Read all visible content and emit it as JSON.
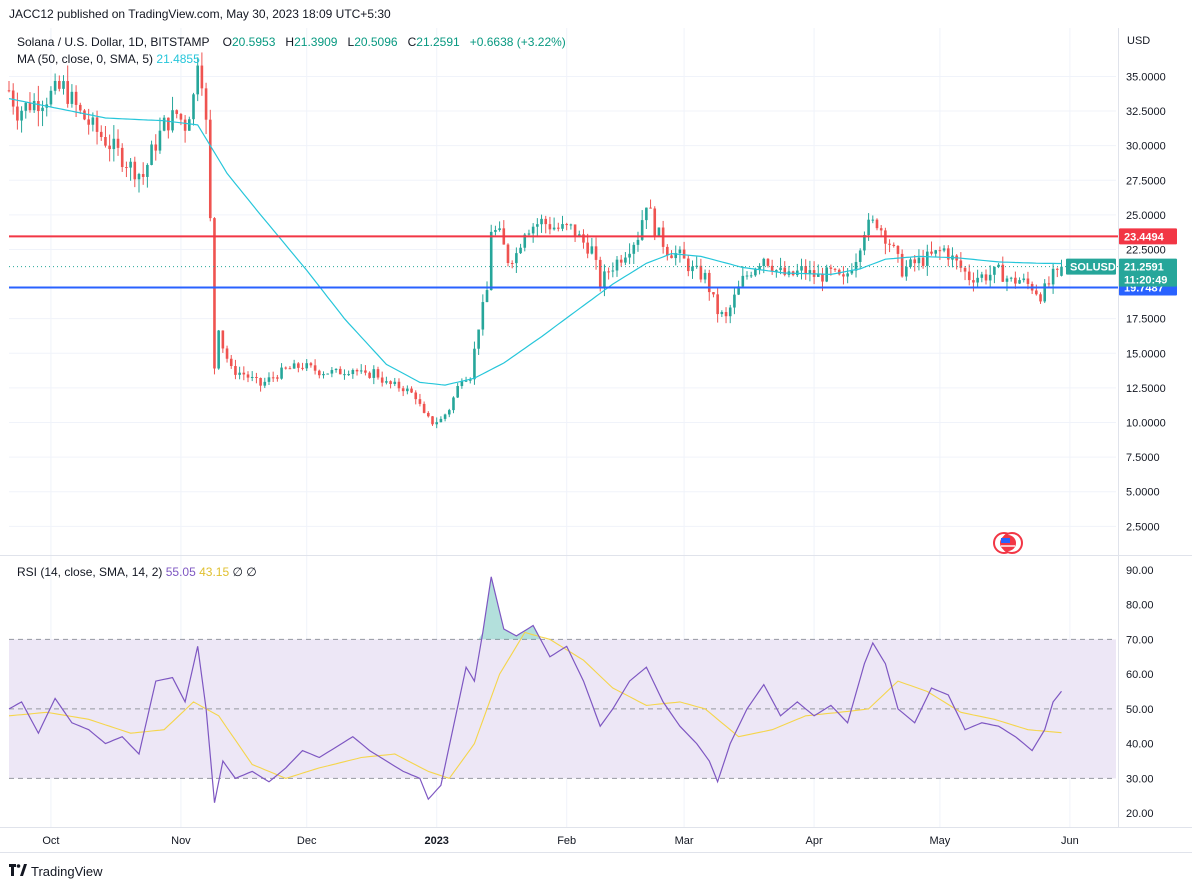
{
  "header": {
    "publisher": "JACC12 published on TradingView.com, May 30, 2023 18:09 UTC+5:30",
    "symbol_line": "Solana / U.S. Dollar, 1D, BITSTAMP",
    "ohlc": {
      "o_label": "O",
      "o": "20.5953",
      "h_label": "H",
      "h": "21.3909",
      "l_label": "L",
      "l": "20.5096",
      "c_label": "C",
      "c": "21.2591",
      "change": "+0.6638 (+3.22%)"
    },
    "ma_label": "MA (50, close, 0, SMA, 5)",
    "ma_value": "21.4855",
    "rsi_label": "RSI (14, close, SMA, 14, 2)",
    "rsi_value": "55.05",
    "rsi_ma_value": "43.15",
    "rsi_extra": "∅ ∅"
  },
  "price_axis": {
    "currency": "USD",
    "ticks": [
      "35.0000",
      "32.5000",
      "30.0000",
      "27.5000",
      "25.0000",
      "22.5000",
      "17.5000",
      "15.0000",
      "12.5000",
      "10.0000",
      "7.5000",
      "5.0000",
      "2.5000"
    ]
  },
  "rsi_axis": {
    "ticks": [
      "90.00",
      "80.00",
      "70.00",
      "60.00",
      "50.00",
      "40.00",
      "30.00",
      "20.00"
    ]
  },
  "time_axis": {
    "labels": [
      {
        "text": "Oct",
        "bold": false
      },
      {
        "text": "Nov",
        "bold": false
      },
      {
        "text": "Dec",
        "bold": false
      },
      {
        "text": "2023",
        "bold": true
      },
      {
        "text": "Feb",
        "bold": false
      },
      {
        "text": "Mar",
        "bold": false
      },
      {
        "text": "Apr",
        "bold": false
      },
      {
        "text": "May",
        "bold": false
      },
      {
        "text": "Jun",
        "bold": false
      }
    ]
  },
  "price_tags": {
    "resistance": "23.4494",
    "support": "19.7487",
    "symbol": "SOLUSD",
    "last": "21.2591",
    "countdown": "11:20:49"
  },
  "colors": {
    "up": "#26a69a",
    "down": "#ef5350",
    "ma": "#26c6da",
    "resistance": "#f23645",
    "support": "#2962ff",
    "rsi_line": "#7e57c2",
    "rsi_ma": "#f5d54b",
    "rsi_band": "#ede7f6"
  },
  "footer": {
    "brand": "TradingView"
  },
  "chart_data": [
    {
      "type": "candlestick",
      "title": "Solana / U.S. Dollar, 1D, BITSTAMP",
      "ylim": [
        0.5,
        38.5
      ],
      "x_range": [
        "2022-09-21",
        "2023-06-12"
      ],
      "anchors": [
        [
          "2022-09-21",
          34.0
        ],
        [
          "2022-09-23",
          32.5
        ],
        [
          "2022-09-26",
          33.0
        ],
        [
          "2022-09-30",
          33.5
        ],
        [
          "2022-10-04",
          34.2
        ],
        [
          "2022-10-08",
          32.3
        ],
        [
          "2022-10-12",
          31.0
        ],
        [
          "2022-10-16",
          29.8
        ],
        [
          "2022-10-20",
          28.5
        ],
        [
          "2022-10-23",
          27.8
        ],
        [
          "2022-10-25",
          29.5
        ],
        [
          "2022-10-28",
          31.5
        ],
        [
          "2022-10-31",
          32.3
        ],
        [
          "2022-11-02",
          31.5
        ],
        [
          "2022-11-04",
          33.5
        ],
        [
          "2022-11-05",
          36.5
        ],
        [
          "2022-11-06",
          35.0
        ],
        [
          "2022-11-07",
          31.5
        ],
        [
          "2022-11-08",
          24.5
        ],
        [
          "2022-11-09",
          14.0
        ],
        [
          "2022-11-10",
          17.0
        ],
        [
          "2022-11-11",
          15.5
        ],
        [
          "2022-11-13",
          13.8
        ],
        [
          "2022-11-16",
          13.5
        ],
        [
          "2022-11-20",
          12.7
        ],
        [
          "2022-11-23",
          13.3
        ],
        [
          "2022-11-26",
          13.8
        ],
        [
          "2022-11-30",
          14.1
        ],
        [
          "2022-12-04",
          13.7
        ],
        [
          "2022-12-08",
          13.6
        ],
        [
          "2022-12-12",
          13.9
        ],
        [
          "2022-12-15",
          13.3
        ],
        [
          "2022-12-17",
          13.7
        ],
        [
          "2022-12-20",
          12.8
        ],
        [
          "2022-12-24",
          12.5
        ],
        [
          "2022-12-27",
          11.9
        ],
        [
          "2022-12-29",
          10.5
        ],
        [
          "2022-12-31",
          10.0
        ],
        [
          "2023-01-02",
          10.2
        ],
        [
          "2023-01-04",
          11.0
        ],
        [
          "2023-01-07",
          13.3
        ],
        [
          "2023-01-09",
          13.4
        ],
        [
          "2023-01-11",
          17.0
        ],
        [
          "2023-01-13",
          19.5
        ],
        [
          "2023-01-14",
          24.0
        ],
        [
          "2023-01-16",
          23.5
        ],
        [
          "2023-01-18",
          21.8
        ],
        [
          "2023-01-20",
          22.2
        ],
        [
          "2023-01-22",
          24.0
        ],
        [
          "2023-01-26",
          24.5
        ],
        [
          "2023-01-30",
          24.0
        ],
        [
          "2023-02-02",
          24.0
        ],
        [
          "2023-02-05",
          23.0
        ],
        [
          "2023-02-07",
          22.5
        ],
        [
          "2023-02-09",
          20.0
        ],
        [
          "2023-02-11",
          21.0
        ],
        [
          "2023-02-14",
          22.0
        ],
        [
          "2023-02-18",
          23.5
        ],
        [
          "2023-02-20",
          26.0
        ],
        [
          "2023-02-22",
          24.0
        ],
        [
          "2023-02-25",
          22.5
        ],
        [
          "2023-02-28",
          22.0
        ],
        [
          "2023-03-03",
          21.0
        ],
        [
          "2023-03-06",
          20.5
        ],
        [
          "2023-03-09",
          18.0
        ],
        [
          "2023-03-11",
          17.5
        ],
        [
          "2023-03-13",
          19.0
        ],
        [
          "2023-03-15",
          20.3
        ],
        [
          "2023-03-17",
          21.0
        ],
        [
          "2023-03-20",
          22.0
        ],
        [
          "2023-03-23",
          21.0
        ],
        [
          "2023-03-26",
          20.5
        ],
        [
          "2023-03-29",
          21.0
        ],
        [
          "2023-04-02",
          20.5
        ],
        [
          "2023-04-05",
          20.8
        ],
        [
          "2023-04-08",
          20.2
        ],
        [
          "2023-04-11",
          22.0
        ],
        [
          "2023-04-13",
          24.0
        ],
        [
          "2023-04-16",
          24.5
        ],
        [
          "2023-04-19",
          23.0
        ],
        [
          "2023-04-22",
          21.0
        ],
        [
          "2023-04-25",
          21.5
        ],
        [
          "2023-04-29",
          22.0
        ],
        [
          "2023-05-02",
          22.5
        ],
        [
          "2023-05-05",
          21.5
        ],
        [
          "2023-05-08",
          20.5
        ],
        [
          "2023-05-12",
          20.6
        ],
        [
          "2023-05-15",
          20.9
        ],
        [
          "2023-05-18",
          20.2
        ],
        [
          "2023-05-20",
          20.3
        ],
        [
          "2023-05-23",
          19.8
        ],
        [
          "2023-05-25",
          19.2
        ],
        [
          "2023-05-27",
          20.0
        ],
        [
          "2023-05-28",
          20.6
        ],
        [
          "2023-05-29",
          20.6
        ],
        [
          "2023-05-30",
          21.2591
        ]
      ],
      "ma_anchors": [
        [
          "2022-09-21",
          33.4
        ],
        [
          "2022-10-14",
          32.0
        ],
        [
          "2022-10-28",
          31.8
        ],
        [
          "2022-11-05",
          31.5
        ],
        [
          "2022-11-12",
          28.0
        ],
        [
          "2022-11-20",
          25.0
        ],
        [
          "2022-12-01",
          21.0
        ],
        [
          "2022-12-10",
          17.5
        ],
        [
          "2022-12-20",
          14.2
        ],
        [
          "2022-12-28",
          12.9
        ],
        [
          "2023-01-03",
          12.7
        ],
        [
          "2023-01-10",
          13.2
        ],
        [
          "2023-01-17",
          14.3
        ],
        [
          "2023-01-26",
          16.2
        ],
        [
          "2023-02-03",
          18.0
        ],
        [
          "2023-02-12",
          20.0
        ],
        [
          "2023-02-20",
          21.5
        ],
        [
          "2023-02-26",
          22.2
        ],
        [
          "2023-03-05",
          22.0
        ],
        [
          "2023-03-15",
          21.2
        ],
        [
          "2023-03-25",
          20.8
        ],
        [
          "2023-04-05",
          20.7
        ],
        [
          "2023-04-12",
          21.1
        ],
        [
          "2023-04-18",
          21.8
        ],
        [
          "2023-04-26",
          22.0
        ],
        [
          "2023-05-05",
          21.9
        ],
        [
          "2023-05-15",
          21.6
        ],
        [
          "2023-05-25",
          21.5
        ],
        [
          "2023-05-30",
          21.4855
        ]
      ],
      "resistance": 23.4494,
      "support": 19.7487,
      "last": 21.2591
    },
    {
      "type": "line",
      "title": "RSI (14, close, SMA, 14, 2)",
      "ylim": [
        16,
        94
      ],
      "overbought": 70,
      "middle": 50,
      "oversold": 30,
      "series": [
        {
          "name": "RSI",
          "points": [
            [
              "2022-09-21",
              50
            ],
            [
              "2022-09-24",
              52
            ],
            [
              "2022-09-28",
              43
            ],
            [
              "2022-10-02",
              53
            ],
            [
              "2022-10-06",
              46
            ],
            [
              "2022-10-10",
              44
            ],
            [
              "2022-10-14",
              40
            ],
            [
              "2022-10-18",
              42
            ],
            [
              "2022-10-22",
              37
            ],
            [
              "2022-10-26",
              58
            ],
            [
              "2022-10-30",
              59
            ],
            [
              "2022-11-02",
              52
            ],
            [
              "2022-11-05",
              68
            ],
            [
              "2022-11-07",
              50
            ],
            [
              "2022-11-09",
              23
            ],
            [
              "2022-11-11",
              35
            ],
            [
              "2022-11-14",
              30
            ],
            [
              "2022-11-18",
              32
            ],
            [
              "2022-11-22",
              29
            ],
            [
              "2022-11-26",
              33
            ],
            [
              "2022-11-30",
              38
            ],
            [
              "2022-12-04",
              36
            ],
            [
              "2022-12-08",
              39
            ],
            [
              "2022-12-12",
              42
            ],
            [
              "2022-12-16",
              38
            ],
            [
              "2022-12-20",
              35
            ],
            [
              "2022-12-24",
              32
            ],
            [
              "2022-12-28",
              30
            ],
            [
              "2022-12-30",
              24
            ],
            [
              "2023-01-02",
              28
            ],
            [
              "2023-01-05",
              45
            ],
            [
              "2023-01-08",
              62
            ],
            [
              "2023-01-10",
              58
            ],
            [
              "2023-01-12",
              72
            ],
            [
              "2023-01-14",
              88
            ],
            [
              "2023-01-17",
              73
            ],
            [
              "2023-01-20",
              71
            ],
            [
              "2023-01-24",
              74
            ],
            [
              "2023-01-28",
              65
            ],
            [
              "2023-02-01",
              68
            ],
            [
              "2023-02-05",
              58
            ],
            [
              "2023-02-09",
              45
            ],
            [
              "2023-02-12",
              50
            ],
            [
              "2023-02-16",
              58
            ],
            [
              "2023-02-20",
              62
            ],
            [
              "2023-02-24",
              52
            ],
            [
              "2023-02-28",
              45
            ],
            [
              "2023-03-04",
              40
            ],
            [
              "2023-03-07",
              35
            ],
            [
              "2023-03-09",
              29
            ],
            [
              "2023-03-12",
              40
            ],
            [
              "2023-03-16",
              50
            ],
            [
              "2023-03-20",
              57
            ],
            [
              "2023-03-24",
              48
            ],
            [
              "2023-03-28",
              52
            ],
            [
              "2023-04-01",
              48
            ],
            [
              "2023-04-05",
              51
            ],
            [
              "2023-04-09",
              46
            ],
            [
              "2023-04-13",
              63
            ],
            [
              "2023-04-15",
              69
            ],
            [
              "2023-04-18",
              63
            ],
            [
              "2023-04-21",
              50
            ],
            [
              "2023-04-25",
              46
            ],
            [
              "2023-04-29",
              56
            ],
            [
              "2023-05-03",
              54
            ],
            [
              "2023-05-07",
              44
            ],
            [
              "2023-05-11",
              46
            ],
            [
              "2023-05-15",
              45
            ],
            [
              "2023-05-19",
              42
            ],
            [
              "2023-05-23",
              38
            ],
            [
              "2023-05-26",
              44
            ],
            [
              "2023-05-28",
              52
            ],
            [
              "2023-05-30",
              55.05
            ]
          ]
        },
        {
          "name": "RSI MA",
          "points": [
            [
              "2022-09-21",
              48
            ],
            [
              "2022-09-30",
              49
            ],
            [
              "2022-10-10",
              47
            ],
            [
              "2022-10-20",
              43
            ],
            [
              "2022-10-28",
              44
            ],
            [
              "2022-11-04",
              52
            ],
            [
              "2022-11-10",
              48
            ],
            [
              "2022-11-18",
              34
            ],
            [
              "2022-11-26",
              30
            ],
            [
              "2022-12-04",
              33
            ],
            [
              "2022-12-14",
              36
            ],
            [
              "2022-12-22",
              37
            ],
            [
              "2022-12-30",
              32
            ],
            [
              "2023-01-04",
              30
            ],
            [
              "2023-01-10",
              40
            ],
            [
              "2023-01-16",
              60
            ],
            [
              "2023-01-22",
              72
            ],
            [
              "2023-01-28",
              70
            ],
            [
              "2023-02-05",
              64
            ],
            [
              "2023-02-12",
              56
            ],
            [
              "2023-02-20",
              51
            ],
            [
              "2023-02-28",
              52
            ],
            [
              "2023-03-06",
              50
            ],
            [
              "2023-03-14",
              42
            ],
            [
              "2023-03-22",
              44
            ],
            [
              "2023-03-30",
              48
            ],
            [
              "2023-04-07",
              49
            ],
            [
              "2023-04-14",
              50
            ],
            [
              "2023-04-21",
              58
            ],
            [
              "2023-04-28",
              55
            ],
            [
              "2023-05-06",
              49
            ],
            [
              "2023-05-14",
              47
            ],
            [
              "2023-05-22",
              44
            ],
            [
              "2023-05-30",
              43.15
            ]
          ]
        }
      ]
    }
  ]
}
